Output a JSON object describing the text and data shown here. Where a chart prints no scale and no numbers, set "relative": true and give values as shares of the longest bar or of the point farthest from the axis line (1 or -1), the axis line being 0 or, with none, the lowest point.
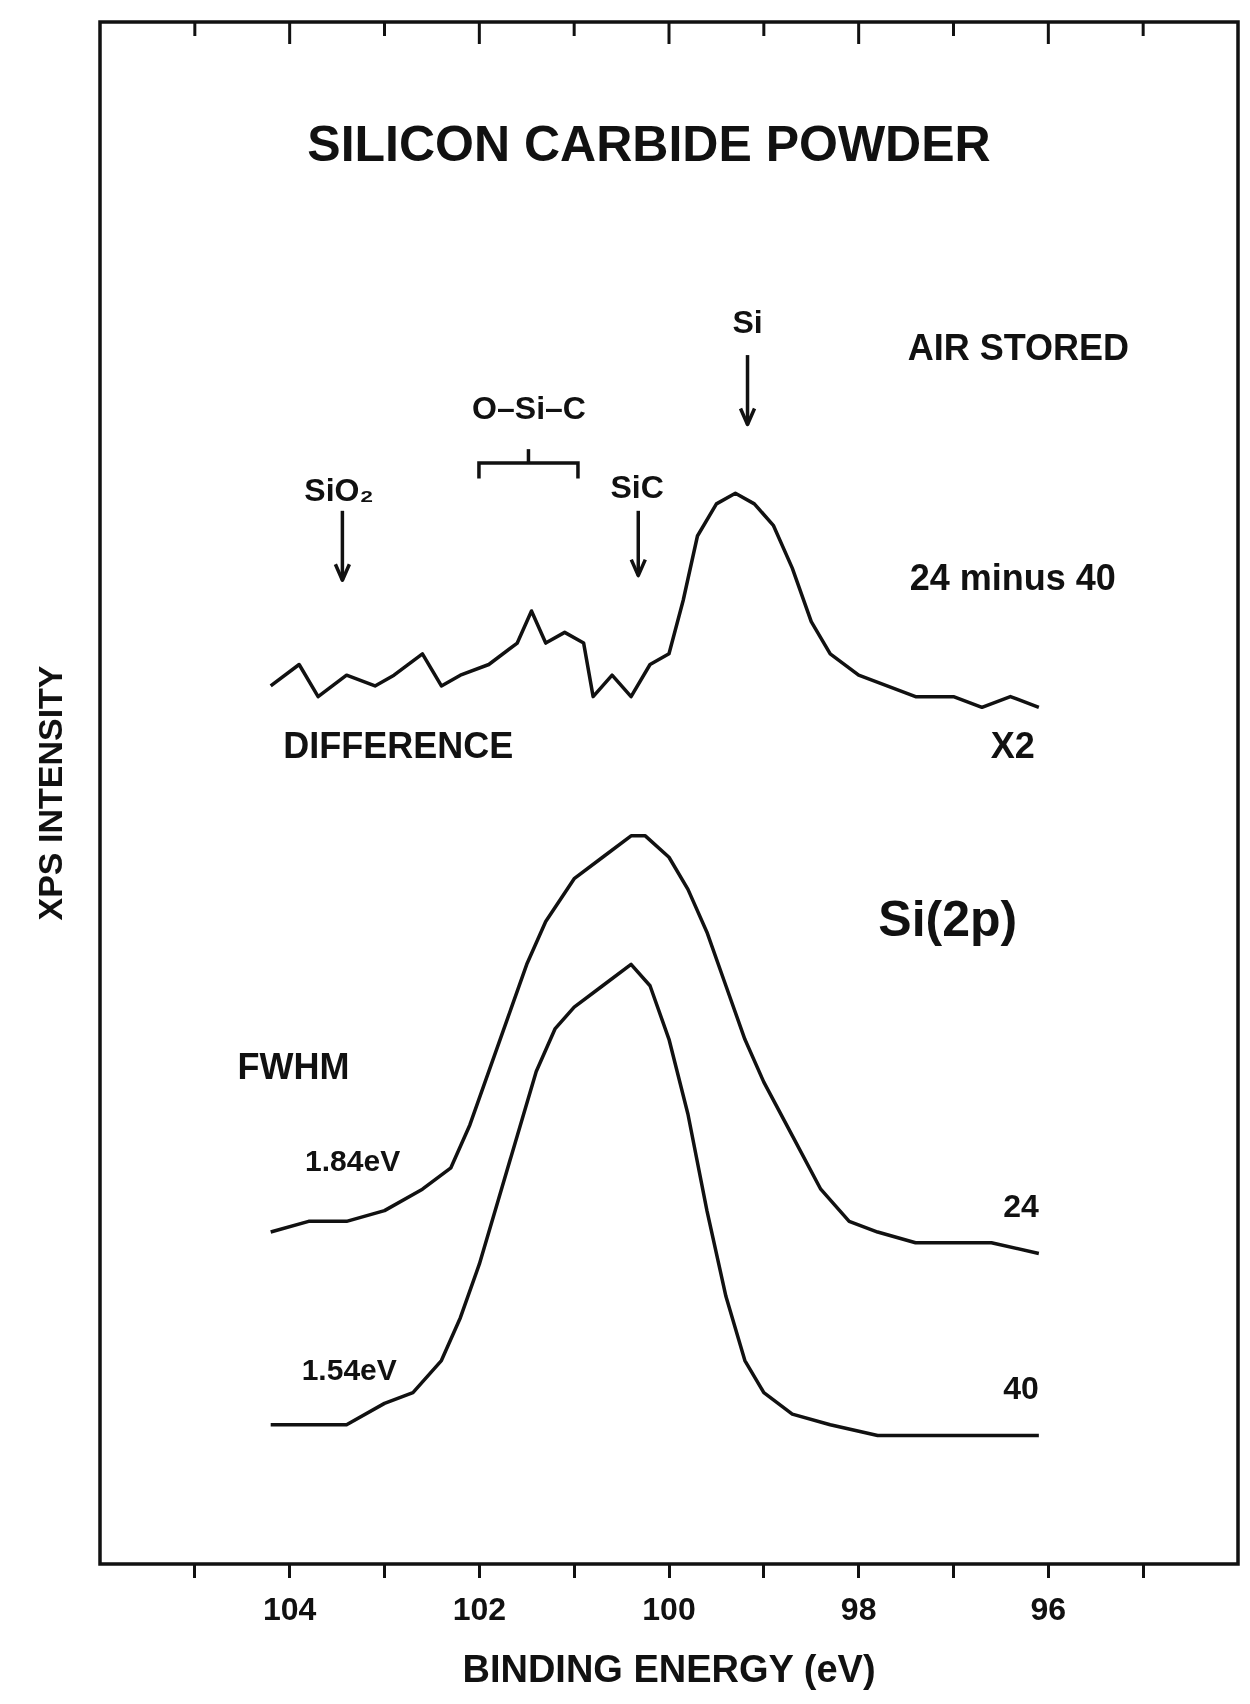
{
  "chart_data": {
    "type": "line",
    "title": "SILICON CARBIDE POWDER",
    "xlabel": "BINDING ENERGY (eV)",
    "ylabel": "XPS INTENSITY",
    "relative": true,
    "xlim": [
      106,
      94
    ],
    "xticks": [
      {
        "value": 105,
        "label": null
      },
      104,
      {
        "value": 103,
        "label": null
      },
      102,
      {
        "value": 101,
        "label": null
      },
      100,
      {
        "value": 99,
        "label": null
      },
      98,
      {
        "value": 97,
        "label": null
      },
      96,
      {
        "value": 95,
        "label": null
      }
    ],
    "series": [
      {
        "color": "#111111",
        "x": [
          104.2,
          103.9,
          103.7,
          103.4,
          103.1,
          102.9,
          102.6,
          102.4,
          102.2,
          101.9,
          101.6,
          101.45,
          101.3,
          101.1,
          100.9,
          100.8,
          100.6,
          100.4,
          100.2,
          100.0,
          99.85,
          99.7,
          99.5,
          99.3,
          99.1,
          98.9,
          98.7,
          98.5,
          98.3,
          98.0,
          97.7,
          97.4,
          97.0,
          96.7,
          96.4,
          96.1
        ],
        "values": [
          0.82,
          0.84,
          0.81,
          0.83,
          0.82,
          0.83,
          0.85,
          0.82,
          0.83,
          0.84,
          0.86,
          0.89,
          0.86,
          0.87,
          0.86,
          0.81,
          0.83,
          0.81,
          0.84,
          0.85,
          0.9,
          0.96,
          0.99,
          1.0,
          0.99,
          0.97,
          0.93,
          0.88,
          0.85,
          0.83,
          0.82,
          0.81,
          0.81,
          0.8,
          0.81,
          0.8
        ]
      },
      {
        "name": "24",
        "color": "#111111",
        "x": [
          104.2,
          103.8,
          103.4,
          103.0,
          102.6,
          102.3,
          102.1,
          101.9,
          101.7,
          101.5,
          101.3,
          101.0,
          100.7,
          100.4,
          100.25,
          100.0,
          99.8,
          99.6,
          99.4,
          99.2,
          99.0,
          98.7,
          98.4,
          98.1,
          97.8,
          97.4,
          97.0,
          96.6,
          96.1
        ],
        "values": [
          0.31,
          0.32,
          0.32,
          0.33,
          0.35,
          0.37,
          0.41,
          0.46,
          0.51,
          0.56,
          0.6,
          0.64,
          0.66,
          0.68,
          0.68,
          0.66,
          0.63,
          0.59,
          0.54,
          0.49,
          0.45,
          0.4,
          0.35,
          0.32,
          0.31,
          0.3,
          0.3,
          0.3,
          0.29
        ]
      },
      {
        "name": "40",
        "color": "#111111",
        "x": [
          104.2,
          103.8,
          103.4,
          103.0,
          102.7,
          102.4,
          102.2,
          102.0,
          101.8,
          101.6,
          101.4,
          101.2,
          101.0,
          100.7,
          100.4,
          100.2,
          100.0,
          99.8,
          99.6,
          99.4,
          99.2,
          99.0,
          98.7,
          98.3,
          97.8,
          97.4,
          96.9,
          96.5,
          96.1
        ],
        "values": [
          0.13,
          0.13,
          0.13,
          0.15,
          0.16,
          0.19,
          0.23,
          0.28,
          0.34,
          0.4,
          0.46,
          0.5,
          0.52,
          0.54,
          0.56,
          0.54,
          0.49,
          0.42,
          0.33,
          0.25,
          0.19,
          0.16,
          0.14,
          0.13,
          0.12,
          0.12,
          0.12,
          0.12,
          0.12
        ]
      }
    ],
    "annotations": [
      "Si",
      "SiO₂",
      "O–Si–C",
      "SiC",
      "AIR STORED",
      "24 minus 40",
      "DIFFERENCE",
      "X2",
      "Si(2p)",
      "FWHM",
      "1.84eV",
      "1.54eV"
    ]
  }
}
